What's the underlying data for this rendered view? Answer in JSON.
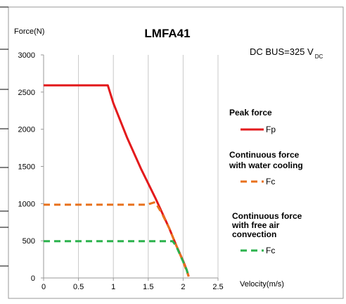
{
  "chart_data": {
    "type": "line",
    "title": "LMFA41",
    "xlabel": "Velocity(m/s)",
    "ylabel": "Force(N)",
    "xlim": [
      0,
      2.5
    ],
    "ylim": [
      0,
      3000
    ],
    "xticks": [
      0,
      0.5,
      1,
      1.5,
      2,
      2.5
    ],
    "yticks": [
      0,
      500,
      1000,
      1500,
      2000,
      2500,
      3000
    ],
    "x_tick_labels": [
      "0",
      "0.5",
      "1",
      "1.5",
      "2",
      "2.5"
    ],
    "y_tick_labels": [
      "0",
      "500",
      "1000",
      "1500",
      "2000",
      "2500",
      "3000"
    ],
    "grid": "vertical",
    "annotation": {
      "text": "DC BUS=325 V",
      "subscript": "DC"
    },
    "series": [
      {
        "name": "Fp",
        "heading": "Peak force",
        "color": "#e31a1c",
        "style": "solid",
        "x": [
          0,
          0.92,
          1.0,
          1.2,
          1.4,
          1.6,
          1.8,
          1.9,
          2.0,
          2.05,
          2.08
        ],
        "y": [
          2590,
          2590,
          2350,
          1880,
          1460,
          1080,
          670,
          440,
          230,
          110,
          20
        ]
      },
      {
        "name": "Fc",
        "heading": "Continuous force with water cooling",
        "color": "#e8711c",
        "style": "dashed",
        "x": [
          0,
          1.48,
          1.6,
          1.7,
          1.8,
          1.9,
          2.0,
          2.08
        ],
        "y": [
          985,
          985,
          1020,
          860,
          670,
          440,
          220,
          20
        ]
      },
      {
        "name": "Fc",
        "heading": "Continuous force with free air convection",
        "color": "#2bb24c",
        "style": "dashed",
        "x": [
          0,
          1.85,
          1.9,
          2.0,
          2.05,
          2.08
        ],
        "y": [
          495,
          495,
          430,
          220,
          110,
          20
        ]
      }
    ]
  }
}
